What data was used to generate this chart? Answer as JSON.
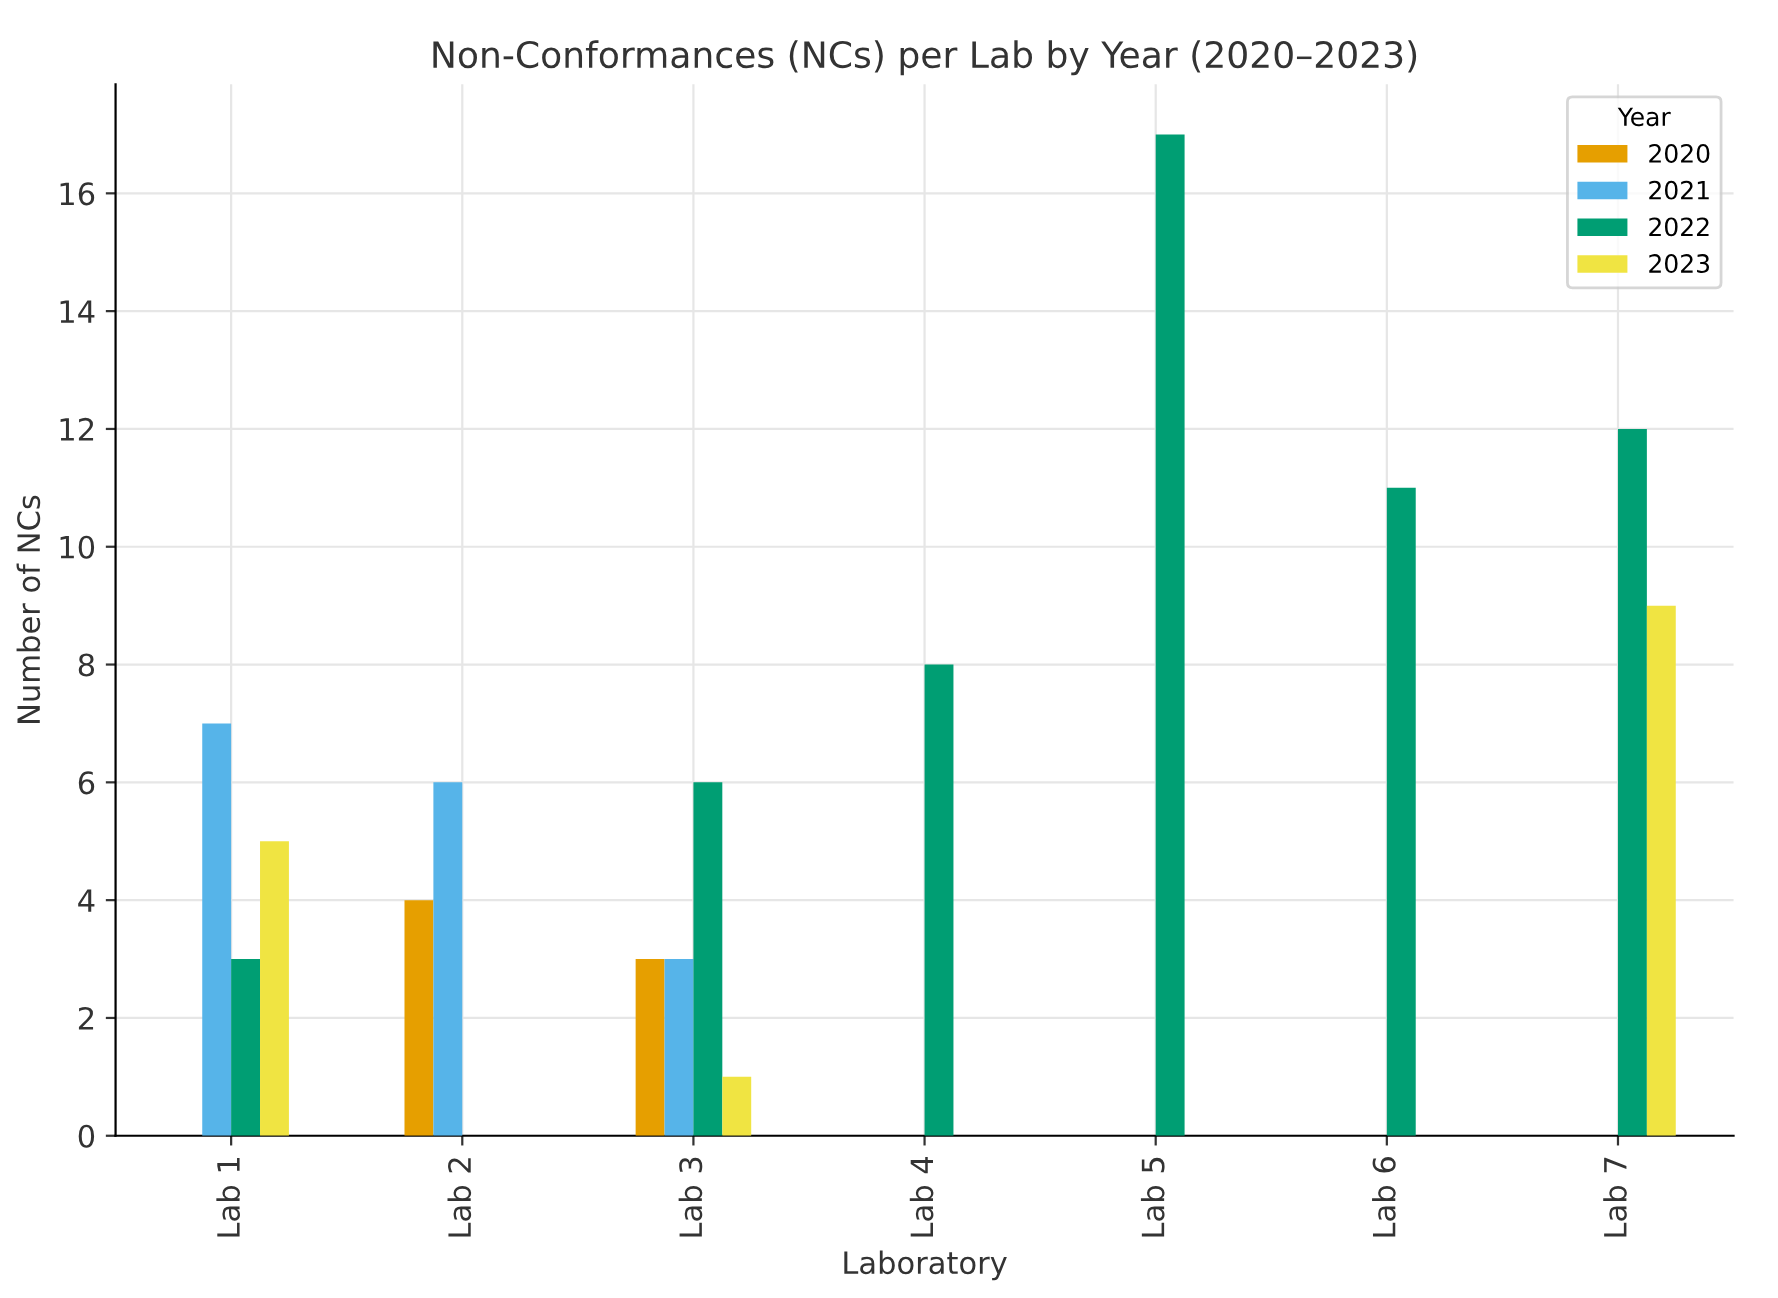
{
  "chart_data": {
    "type": "bar",
    "title": "Non-Conformances (NCs) per Lab by Year (2020–2023)",
    "xlabel": "Laboratory",
    "ylabel": "Number of NCs",
    "legend_title": "Year",
    "categories": [
      "Lab 1",
      "Lab 2",
      "Lab 3",
      "Lab 4",
      "Lab 5",
      "Lab 6",
      "Lab 7"
    ],
    "series": [
      {
        "name": "2020",
        "color": "#e69f00",
        "values": [
          0,
          4,
          3,
          0,
          0,
          0,
          0
        ]
      },
      {
        "name": "2021",
        "color": "#56b4e9",
        "values": [
          7,
          6,
          3,
          0,
          0,
          0,
          0
        ]
      },
      {
        "name": "2022",
        "color": "#009e73",
        "values": [
          3,
          0,
          6,
          8,
          17,
          11,
          12
        ]
      },
      {
        "name": "2023",
        "color": "#f0e442",
        "values": [
          5,
          0,
          1,
          0,
          0,
          0,
          9
        ]
      }
    ],
    "ylim": [
      0,
      17.85
    ],
    "yticks": [
      0,
      2,
      4,
      6,
      8,
      10,
      12,
      14,
      16
    ],
    "grid": true,
    "legend": "top right"
  }
}
